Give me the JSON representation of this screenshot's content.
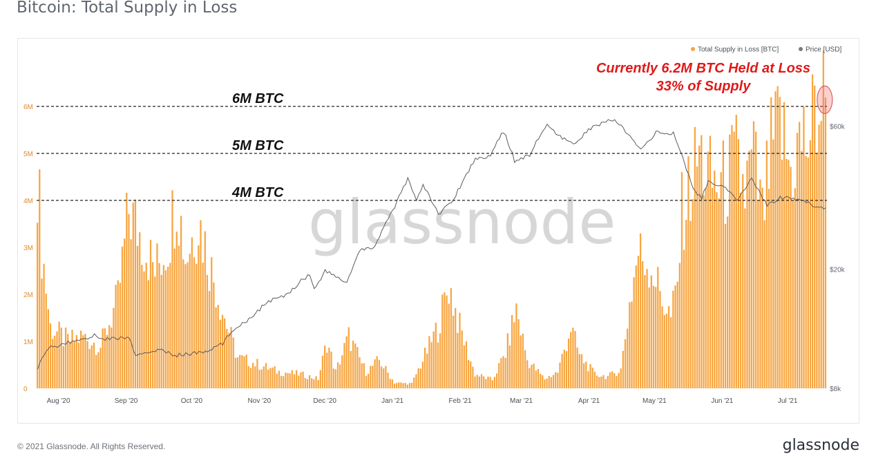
{
  "title": "Bitcoin: Total Supply in Loss",
  "footer": {
    "copyright": "© 2021 Glassnode. All Rights Reserved.",
    "logo": "glassnode"
  },
  "watermark": "glassnode",
  "colors": {
    "bars": "#f7a541",
    "price": "#5a5a5a",
    "annotation": "#e01919",
    "refline": "#222222"
  },
  "chart_data": {
    "type": "bar",
    "legend": {
      "placement": "top-right",
      "entries": [
        {
          "label": "Total Supply in Loss [BTC]",
          "color": "#f7a541"
        },
        {
          "label": "Price [USD]",
          "color": "#7a7a7a"
        }
      ]
    },
    "y_left": {
      "ticks": [
        {
          "v": 0,
          "label": "0"
        },
        {
          "v": 1000000,
          "label": "1M"
        },
        {
          "v": 2000000,
          "label": "2M"
        },
        {
          "v": 3000000,
          "label": "3M"
        },
        {
          "v": 4000000,
          "label": "4M"
        },
        {
          "v": 5000000,
          "label": "5M"
        },
        {
          "v": 6000000,
          "label": "6M"
        }
      ],
      "range": [
        0,
        7000000
      ]
    },
    "y_right": {
      "scale": "log",
      "range": [
        8000,
        100000
      ],
      "ticks": [
        {
          "v": 8000,
          "label": "$8k"
        },
        {
          "v": 20000,
          "label": "$20k"
        },
        {
          "v": 60000,
          "label": "$60k"
        }
      ]
    },
    "x": {
      "start": "2020-07-22",
      "end": "2021-07-19",
      "ticks": [
        {
          "date": "2020-08-01",
          "label": "Aug '20"
        },
        {
          "date": "2020-09-01",
          "label": "Sep '20"
        },
        {
          "date": "2020-10-01",
          "label": "Oct '20"
        },
        {
          "date": "2020-11-01",
          "label": "Nov '20"
        },
        {
          "date": "2020-12-01",
          "label": "Dec '20"
        },
        {
          "date": "2021-01-01",
          "label": "Jan '21"
        },
        {
          "date": "2021-02-01",
          "label": "Feb '21"
        },
        {
          "date": "2021-03-01",
          "label": "Mar '21"
        },
        {
          "date": "2021-04-01",
          "label": "Apr '21"
        },
        {
          "date": "2021-05-01",
          "label": "May '21"
        },
        {
          "date": "2021-06-01",
          "label": "Jun '21"
        },
        {
          "date": "2021-07-01",
          "label": "Jul '21"
        }
      ]
    },
    "supply_anchors": [
      [
        "2020-07-22",
        4700000
      ],
      [
        "2020-07-24",
        3000000
      ],
      [
        "2020-07-28",
        1300000
      ],
      [
        "2020-08-05",
        1000000
      ],
      [
        "2020-08-12",
        1100000
      ],
      [
        "2020-08-20",
        900000
      ],
      [
        "2020-08-28",
        1900000
      ],
      [
        "2020-09-02",
        3800000
      ],
      [
        "2020-09-08",
        3200000
      ],
      [
        "2020-09-14",
        2500000
      ],
      [
        "2020-09-20",
        3100000
      ],
      [
        "2020-09-24",
        4200000
      ],
      [
        "2020-09-28",
        2800000
      ],
      [
        "2020-10-04",
        3600000
      ],
      [
        "2020-10-10",
        2500000
      ],
      [
        "2020-10-16",
        1500000
      ],
      [
        "2020-10-22",
        650000
      ],
      [
        "2020-11-01",
        500000
      ],
      [
        "2020-11-10",
        350000
      ],
      [
        "2020-11-20",
        300000
      ],
      [
        "2020-11-28",
        200000
      ],
      [
        "2020-12-02",
        1000000
      ],
      [
        "2020-12-06",
        350000
      ],
      [
        "2020-12-12",
        1100000
      ],
      [
        "2020-12-20",
        350000
      ],
      [
        "2020-12-26",
        600000
      ],
      [
        "2021-01-02",
        120000
      ],
      [
        "2021-01-10",
        100000
      ],
      [
        "2021-01-16",
        700000
      ],
      [
        "2021-01-22",
        1300000
      ],
      [
        "2021-01-27",
        2200000
      ],
      [
        "2021-02-01",
        1300000
      ],
      [
        "2021-02-08",
        300000
      ],
      [
        "2021-02-16",
        180000
      ],
      [
        "2021-02-22",
        750000
      ],
      [
        "2021-02-27",
        1700000
      ],
      [
        "2021-03-04",
        600000
      ],
      [
        "2021-03-12",
        200000
      ],
      [
        "2021-03-18",
        350000
      ],
      [
        "2021-03-24",
        1300000
      ],
      [
        "2021-03-28",
        700000
      ],
      [
        "2021-04-04",
        300000
      ],
      [
        "2021-04-10",
        250000
      ],
      [
        "2021-04-16",
        400000
      ],
      [
        "2021-04-20",
        1800000
      ],
      [
        "2021-04-24",
        2900000
      ],
      [
        "2021-04-30",
        2600000
      ],
      [
        "2021-05-05",
        1900000
      ],
      [
        "2021-05-09",
        1500000
      ],
      [
        "2021-05-12",
        2200000
      ],
      [
        "2021-05-14",
        3700000
      ],
      [
        "2021-05-18",
        4300000
      ],
      [
        "2021-05-22",
        5000000
      ],
      [
        "2021-05-27",
        4400000
      ],
      [
        "2021-06-02",
        4300000
      ],
      [
        "2021-06-08",
        4800000
      ],
      [
        "2021-06-12",
        4200000
      ],
      [
        "2021-06-16",
        4900000
      ],
      [
        "2021-06-20",
        3600000
      ],
      [
        "2021-06-24",
        5000000
      ],
      [
        "2021-06-28",
        5600000
      ],
      [
        "2021-07-03",
        4600000
      ],
      [
        "2021-07-07",
        5200000
      ],
      [
        "2021-07-11",
        5300000
      ],
      [
        "2021-07-15",
        5900000
      ],
      [
        "2021-07-19",
        6200000
      ]
    ],
    "price_anchors": [
      [
        "2020-07-22",
        9400
      ],
      [
        "2020-07-27",
        10900
      ],
      [
        "2020-08-02",
        11200
      ],
      [
        "2020-08-17",
        12000
      ],
      [
        "2020-08-22",
        11700
      ],
      [
        "2020-09-02",
        11800
      ],
      [
        "2020-09-05",
        10200
      ],
      [
        "2020-09-15",
        10800
      ],
      [
        "2020-09-23",
        10300
      ],
      [
        "2020-10-08",
        10600
      ],
      [
        "2020-10-15",
        11300
      ],
      [
        "2020-10-21",
        12800
      ],
      [
        "2020-10-27",
        13600
      ],
      [
        "2020-11-05",
        15600
      ],
      [
        "2020-11-13",
        16300
      ],
      [
        "2020-11-20",
        18300
      ],
      [
        "2020-11-24",
        19200
      ],
      [
        "2020-11-26",
        17100
      ],
      [
        "2020-12-01",
        19700
      ],
      [
        "2020-12-11",
        18000
      ],
      [
        "2020-12-17",
        23000
      ],
      [
        "2020-12-24",
        23700
      ],
      [
        "2020-12-27",
        27000
      ],
      [
        "2021-01-02",
        32000
      ],
      [
        "2021-01-08",
        40000
      ],
      [
        "2021-01-12",
        34000
      ],
      [
        "2021-01-15",
        38000
      ],
      [
        "2021-01-22",
        30500
      ],
      [
        "2021-01-29",
        34000
      ],
      [
        "2021-02-08",
        46500
      ],
      [
        "2021-02-15",
        48000
      ],
      [
        "2021-02-21",
        57500
      ],
      [
        "2021-02-26",
        46000
      ],
      [
        "2021-03-05",
        48000
      ],
      [
        "2021-03-13",
        61000
      ],
      [
        "2021-03-17",
        56000
      ],
      [
        "2021-03-25",
        52000
      ],
      [
        "2021-04-02",
        59000
      ],
      [
        "2021-04-13",
        63500
      ],
      [
        "2021-04-19",
        56000
      ],
      [
        "2021-04-25",
        50000
      ],
      [
        "2021-05-02",
        57000
      ],
      [
        "2021-05-10",
        56500
      ],
      [
        "2021-05-13",
        49500
      ],
      [
        "2021-05-19",
        37000
      ],
      [
        "2021-05-23",
        34500
      ],
      [
        "2021-05-26",
        39000
      ],
      [
        "2021-06-04",
        36800
      ],
      [
        "2021-06-08",
        33500
      ],
      [
        "2021-06-15",
        40100
      ],
      [
        "2021-06-22",
        32500
      ],
      [
        "2021-06-28",
        34700
      ],
      [
        "2021-07-06",
        34200
      ],
      [
        "2021-07-13",
        32700
      ],
      [
        "2021-07-19",
        31800
      ]
    ],
    "reference_lines": [
      {
        "value": 6000000,
        "label": "6M BTC"
      },
      {
        "value": 5000000,
        "label": "5M BTC"
      },
      {
        "value": 4000000,
        "label": "4M BTC"
      }
    ],
    "annotation": {
      "lines": [
        "Currently 6.2M BTC Held at Loss",
        "33% of Supply"
      ],
      "date": "2021-07-18",
      "value": 6200000
    }
  }
}
